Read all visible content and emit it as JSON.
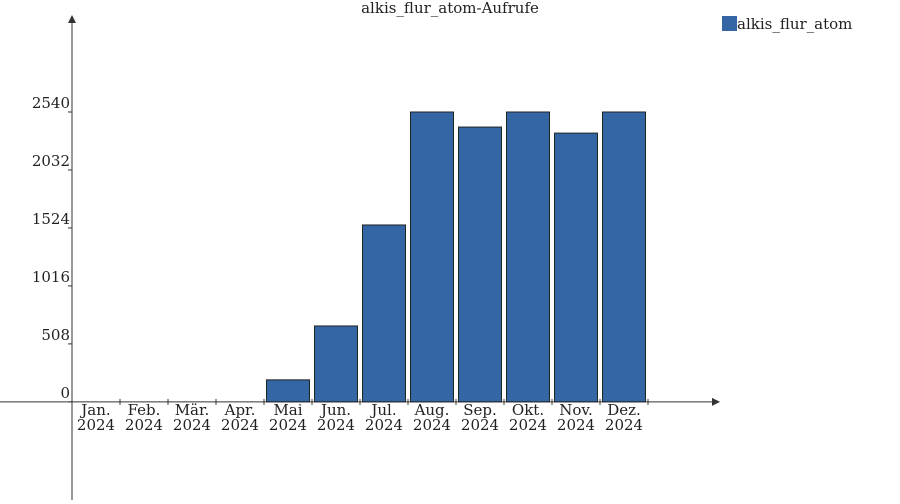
{
  "chart_data": {
    "type": "bar",
    "title": "alkis_flur_atom-Aufrufe",
    "categories": [
      [
        "Jan.",
        "2024"
      ],
      [
        "Feb.",
        "2024"
      ],
      [
        "Mär.",
        "2024"
      ],
      [
        "Apr.",
        "2024"
      ],
      [
        "Mai",
        "2024"
      ],
      [
        "Jun.",
        "2024"
      ],
      [
        "Jul.",
        "2024"
      ],
      [
        "Aug.",
        "2024"
      ],
      [
        "Sep.",
        "2024"
      ],
      [
        "Okt.",
        "2024"
      ],
      [
        "Nov.",
        "2024"
      ],
      [
        "Dez.",
        "2024"
      ]
    ],
    "series": [
      {
        "name": "alkis_flur_atom",
        "color": "#3465a4",
        "values": [
          0,
          0,
          0,
          0,
          193,
          665,
          1550,
          2540,
          2408,
          2540,
          2355,
          2540
        ]
      }
    ],
    "ylim": [
      -860,
      3390
    ],
    "yticks": [
      0,
      508,
      1016,
      1524,
      2032,
      2540
    ],
    "legend": "top-right"
  }
}
